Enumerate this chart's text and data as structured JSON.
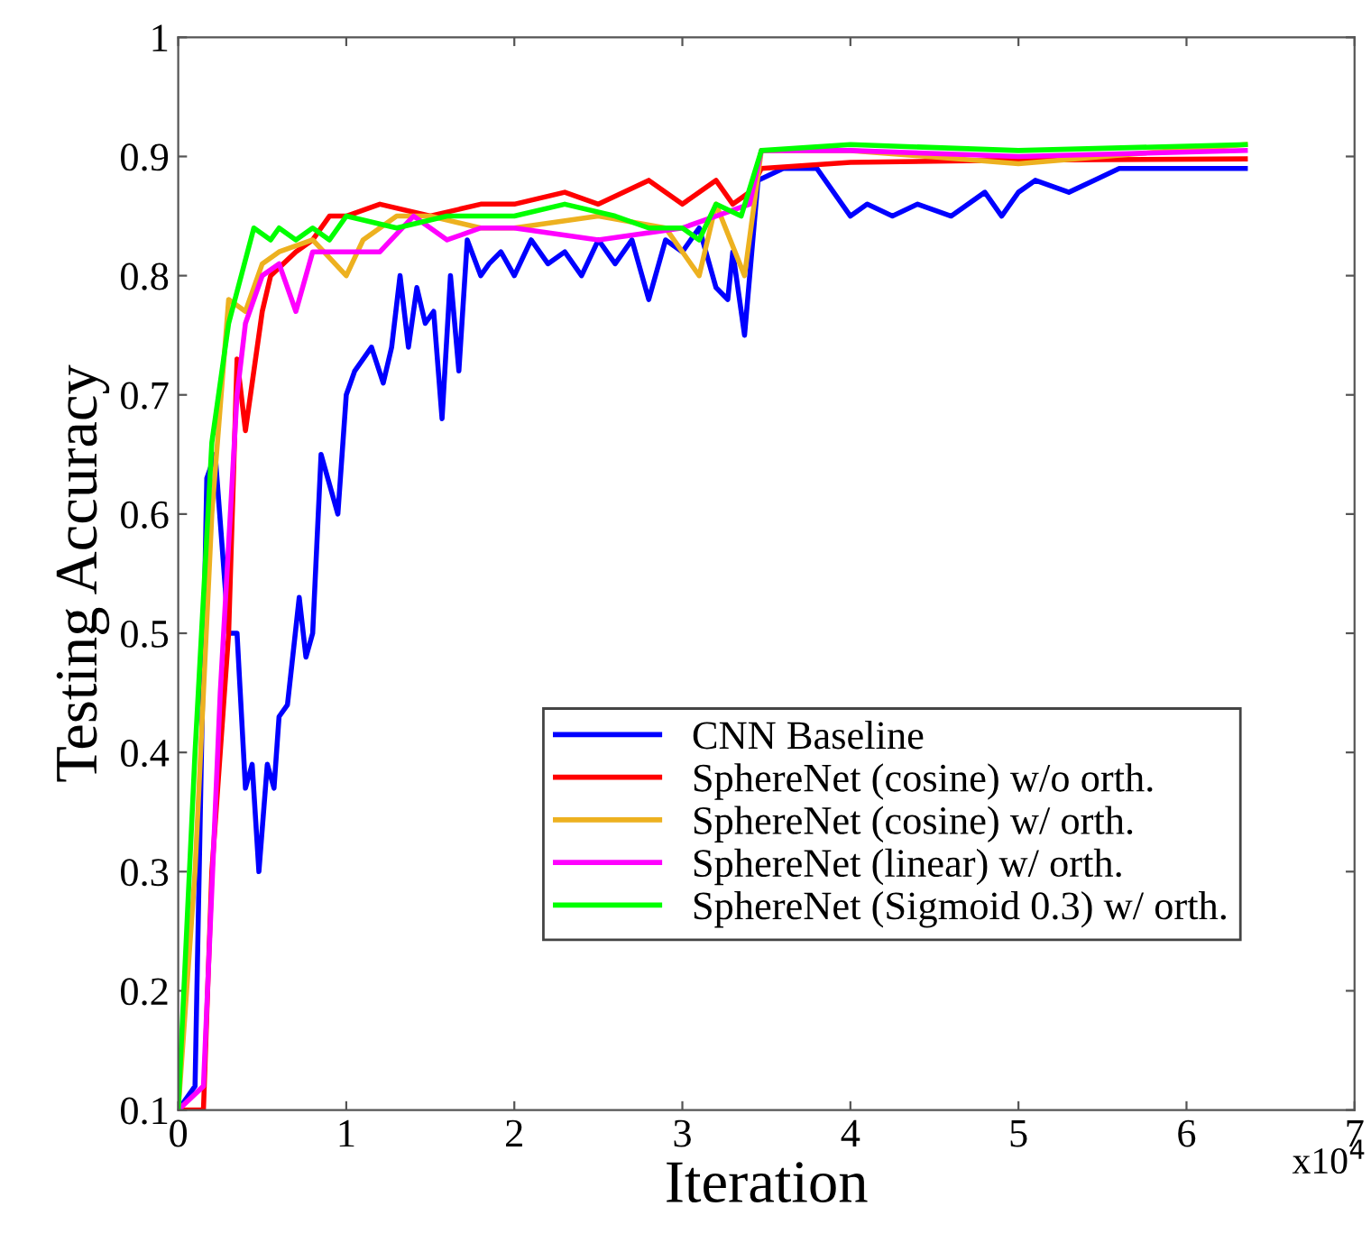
{
  "chart_data": {
    "type": "line",
    "xlabel": "Iteration",
    "ylabel": "Testing Accuracy",
    "xlim": [
      0,
      7
    ],
    "ylim": [
      0.1,
      1
    ],
    "xticks": [
      0,
      1,
      2,
      3,
      4,
      5,
      6,
      7
    ],
    "yticks": [
      0.1,
      0.2,
      0.3,
      0.4,
      0.5,
      0.6,
      0.7,
      0.8,
      0.9,
      1
    ],
    "grid": false,
    "legend": "bottom right",
    "marker": "none",
    "line_style": "solid",
    "annotations": [
      "x10$^{4}$"
    ],
    "series": [
      {
        "name": "CNN Baseline",
        "color": "#0000ff",
        "x": [
          0,
          0.1,
          0.17,
          0.22,
          0.3,
          0.35,
          0.4,
          0.44,
          0.48,
          0.53,
          0.57,
          0.6,
          0.65,
          0.72,
          0.76,
          0.8,
          0.85,
          0.95,
          1.0,
          1.05,
          1.15,
          1.22,
          1.27,
          1.32,
          1.37,
          1.42,
          1.47,
          1.52,
          1.57,
          1.62,
          1.67,
          1.72,
          1.8,
          1.85,
          1.92,
          2.0,
          2.1,
          2.2,
          2.3,
          2.4,
          2.5,
          2.6,
          2.7,
          2.8,
          2.9,
          3.0,
          3.1,
          3.2,
          3.27,
          3.3,
          3.37,
          3.45,
          3.6,
          3.8,
          3.9,
          4.0,
          4.1,
          4.25,
          4.4,
          4.6,
          4.8,
          4.9,
          5.0,
          5.1,
          5.3,
          5.45,
          5.6,
          6.0,
          6.35
        ],
        "values": [
          0.1,
          0.12,
          0.63,
          0.65,
          0.5,
          0.5,
          0.37,
          0.39,
          0.3,
          0.39,
          0.37,
          0.43,
          0.44,
          0.53,
          0.48,
          0.5,
          0.65,
          0.6,
          0.7,
          0.72,
          0.74,
          0.71,
          0.74,
          0.8,
          0.74,
          0.79,
          0.76,
          0.77,
          0.68,
          0.8,
          0.72,
          0.83,
          0.8,
          0.81,
          0.82,
          0.8,
          0.83,
          0.81,
          0.82,
          0.8,
          0.83,
          0.81,
          0.83,
          0.78,
          0.83,
          0.82,
          0.84,
          0.79,
          0.78,
          0.82,
          0.75,
          0.88,
          0.89,
          0.89,
          0.87,
          0.85,
          0.86,
          0.85,
          0.86,
          0.85,
          0.87,
          0.85,
          0.87,
          0.88,
          0.87,
          0.88,
          0.89,
          0.89,
          0.89
        ]
      },
      {
        "name": "SphereNet (cosine) w/o orth.",
        "color": "#ff0000",
        "x": [
          0,
          0.15,
          0.2,
          0.3,
          0.35,
          0.4,
          0.5,
          0.55,
          0.7,
          0.8,
          0.9,
          1.0,
          1.2,
          1.5,
          1.8,
          2.0,
          2.3,
          2.5,
          2.8,
          3.0,
          3.2,
          3.3,
          3.4,
          3.47,
          4.0,
          5.0,
          6.35
        ],
        "values": [
          0.1,
          0.1,
          0.3,
          0.5,
          0.73,
          0.67,
          0.77,
          0.8,
          0.82,
          0.83,
          0.85,
          0.85,
          0.86,
          0.85,
          0.86,
          0.86,
          0.87,
          0.86,
          0.88,
          0.86,
          0.88,
          0.86,
          0.87,
          0.89,
          0.895,
          0.897,
          0.898
        ]
      },
      {
        "name": "SphereNet (cosine) w/ orth.",
        "color": "#edb120",
        "x": [
          0,
          0.1,
          0.2,
          0.3,
          0.4,
          0.5,
          0.6,
          0.8,
          1.0,
          1.1,
          1.3,
          1.5,
          1.8,
          2.0,
          2.5,
          2.9,
          3.1,
          3.2,
          3.37,
          3.47,
          4.0,
          5.0,
          6.35
        ],
        "values": [
          0.1,
          0.3,
          0.6,
          0.78,
          0.77,
          0.81,
          0.82,
          0.83,
          0.8,
          0.83,
          0.85,
          0.85,
          0.84,
          0.84,
          0.85,
          0.84,
          0.8,
          0.86,
          0.8,
          0.905,
          0.905,
          0.894,
          0.91
        ]
      },
      {
        "name": "SphereNet (linear) w/ orth.",
        "color": "#ff00ff",
        "x": [
          0,
          0.15,
          0.25,
          0.35,
          0.4,
          0.5,
          0.6,
          0.7,
          0.8,
          1.0,
          1.2,
          1.4,
          1.6,
          1.8,
          2.0,
          2.5,
          3.0,
          3.2,
          3.4,
          3.47,
          4.0,
          5.0,
          6.35
        ],
        "values": [
          0.1,
          0.12,
          0.45,
          0.7,
          0.76,
          0.8,
          0.81,
          0.77,
          0.82,
          0.82,
          0.82,
          0.85,
          0.83,
          0.84,
          0.84,
          0.83,
          0.84,
          0.85,
          0.86,
          0.905,
          0.905,
          0.9,
          0.905
        ]
      },
      {
        "name": "SphereNet (Sigmoid 0.3) w/ orth.",
        "color": "#00ff00",
        "x": [
          0,
          0.1,
          0.2,
          0.3,
          0.45,
          0.55,
          0.6,
          0.7,
          0.8,
          0.9,
          1.0,
          1.3,
          1.6,
          2.0,
          2.3,
          2.6,
          2.8,
          3.0,
          3.1,
          3.2,
          3.35,
          3.47,
          4.0,
          5.0,
          6.35
        ],
        "values": [
          0.1,
          0.4,
          0.66,
          0.76,
          0.84,
          0.83,
          0.84,
          0.83,
          0.84,
          0.83,
          0.85,
          0.84,
          0.85,
          0.85,
          0.86,
          0.85,
          0.84,
          0.84,
          0.83,
          0.86,
          0.85,
          0.905,
          0.91,
          0.905,
          0.91
        ]
      }
    ]
  }
}
